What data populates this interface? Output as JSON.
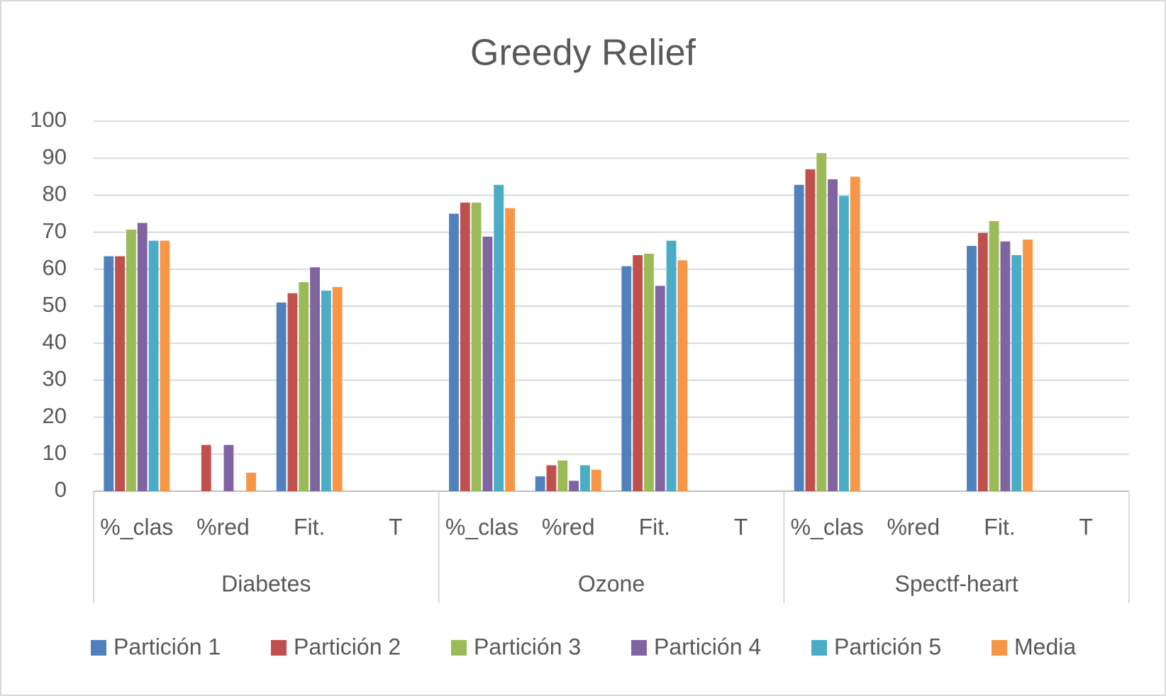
{
  "chart_data": {
    "type": "bar",
    "title": "Greedy Relief",
    "categories": [
      "%_clas",
      "%red",
      "Fit.",
      "T",
      "%_clas",
      "%red",
      "Fit.",
      "T",
      "%_clas",
      "%red",
      "Fit.",
      "T"
    ],
    "category_groups": [
      "Diabetes",
      "Ozone",
      "Spectf-heart"
    ],
    "series": [
      {
        "name": "Partición 1",
        "color": "#4f81bd",
        "values": [
          63.5,
          0,
          51,
          0,
          75,
          4,
          60.8,
          0,
          82.8,
          0,
          66.3,
          0
        ]
      },
      {
        "name": "Partición 2",
        "color": "#c0504d",
        "values": [
          63.5,
          12.5,
          53.5,
          0,
          78,
          7,
          63.8,
          0,
          87,
          0,
          69.8,
          0
        ]
      },
      {
        "name": "Partición 3",
        "color": "#9bbb59",
        "values": [
          70.7,
          0,
          56.5,
          0,
          78,
          8.3,
          64.2,
          0,
          91.4,
          0,
          73,
          0
        ]
      },
      {
        "name": "Partición 4",
        "color": "#8064a2",
        "values": [
          72.5,
          12.5,
          60.5,
          0,
          68.8,
          2.8,
          55.5,
          0,
          84.3,
          0,
          67.5,
          0
        ]
      },
      {
        "name": "Partición 5",
        "color": "#4bacc6",
        "values": [
          67.7,
          0,
          54.2,
          0,
          82.8,
          7,
          67.7,
          0,
          79.8,
          0,
          63.8,
          0
        ]
      },
      {
        "name": "Media",
        "color": "#f79646",
        "values": [
          67.7,
          5,
          55.2,
          0,
          76.5,
          5.8,
          62.4,
          0,
          85,
          0,
          68,
          0
        ]
      }
    ],
    "ylim": [
      0,
      100
    ],
    "yticks": [
      0,
      10,
      20,
      30,
      40,
      50,
      60,
      70,
      80,
      90,
      100
    ],
    "grid": true,
    "legend": "bottom"
  }
}
